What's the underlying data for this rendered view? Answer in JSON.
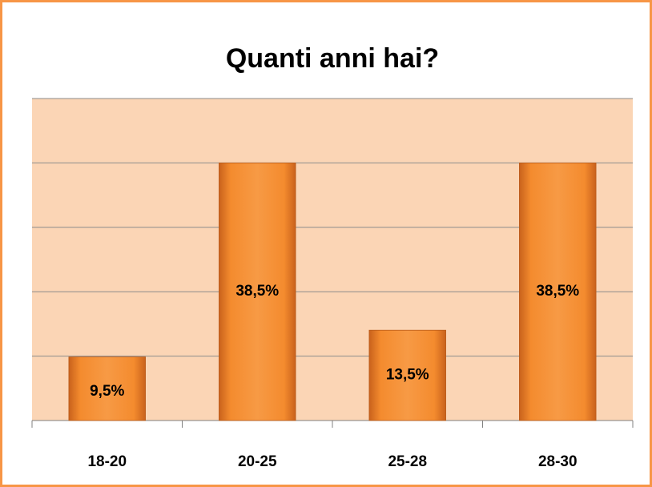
{
  "chart_data": {
    "type": "bar",
    "title": "Quanti anni hai?",
    "categories": [
      "18-20",
      "20-25",
      "25-28",
      "28-30"
    ],
    "values": [
      9.5,
      38.5,
      13.5,
      38.5
    ],
    "value_labels": [
      "9,5%",
      "38,5%",
      "13,5%",
      "38,5%"
    ],
    "color": "#f28a2e",
    "ylim": [
      0,
      48.125
    ],
    "yticks": [
      0,
      9.625,
      19.25,
      28.875,
      38.5,
      48.125
    ],
    "grid": true
  }
}
